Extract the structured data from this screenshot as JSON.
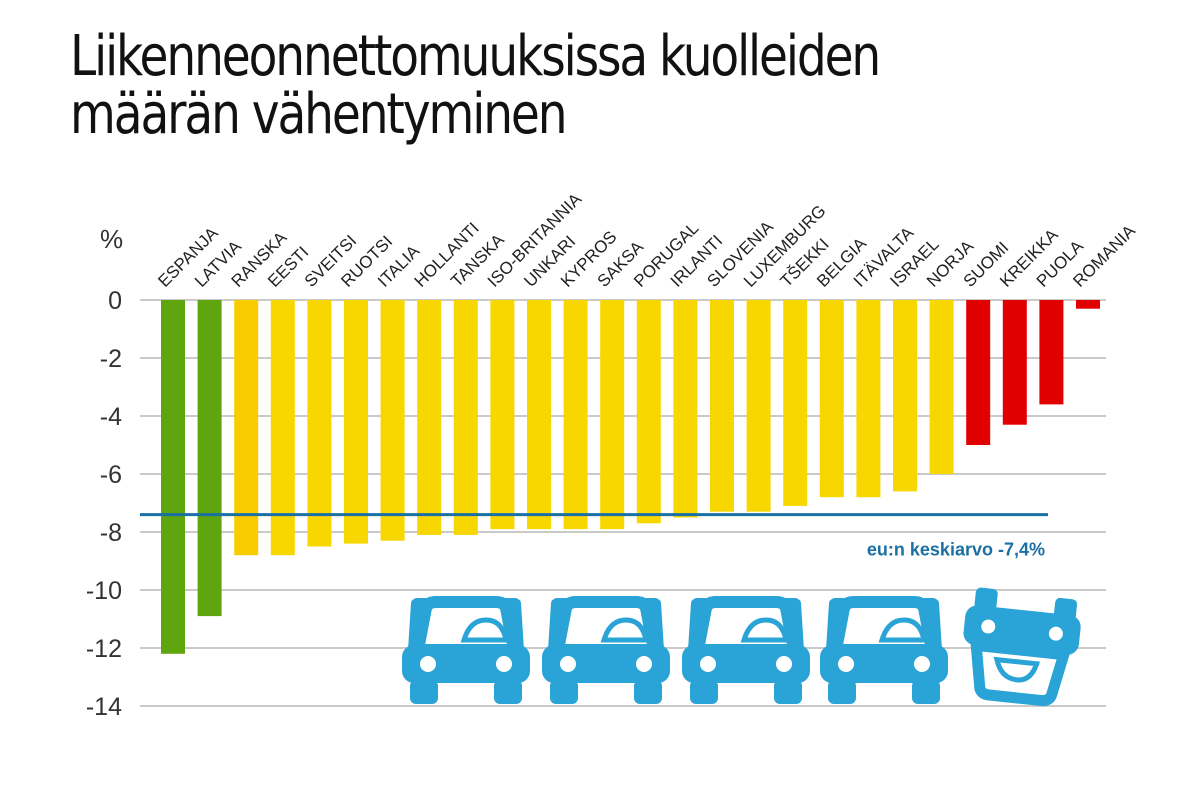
{
  "title": "Liikenneonnettomuuksissa kuolleiden määrän vähentyminen",
  "chart_data": {
    "type": "bar",
    "title": "Liikenneonnettomuuksissa kuolleiden määrän vähentyminen",
    "ylabel": "%",
    "xlabel": "",
    "ylim": [
      -14,
      0
    ],
    "yticks": [
      "0",
      "-2",
      "-4",
      "-6",
      "-8",
      "-10",
      "-12",
      "-14"
    ],
    "grid": true,
    "categories": [
      "ESPANJA",
      "LATVIA",
      "RANSKA",
      "EESTI",
      "SVEITSI",
      "RUOTSI",
      "ITALIA",
      "HOLLANTI",
      "TANSKA",
      "ISO-BRITANNIA",
      "UNKARI",
      "KYPROS",
      "SAKSA",
      "PORUGAL",
      "IRLANTI",
      "SLOVENIA",
      "LUXEMBURG",
      "TŠEKKI",
      "BELGIA",
      "ITÄVALTA",
      "ISRAEL",
      "NORJA",
      "SUOMI",
      "KREIKKA",
      "PUOLA",
      "ROMANIA"
    ],
    "values": [
      -12.2,
      -10.9,
      -8.8,
      -8.8,
      -8.5,
      -8.4,
      -8.3,
      -8.1,
      -8.1,
      -7.9,
      -7.9,
      -7.9,
      -7.9,
      -7.7,
      -7.5,
      -7.3,
      -7.3,
      -7.1,
      -6.8,
      -6.8,
      -6.6,
      -6.0,
      -5.0,
      -4.3,
      -3.6,
      -0.3
    ],
    "colors": [
      "#5fa50d",
      "#5fa50d",
      "#f8cc00",
      "#f8d600",
      "#f8d600",
      "#f8d600",
      "#f8d600",
      "#f8d600",
      "#f8d600",
      "#f8d600",
      "#f8d600",
      "#f8d600",
      "#f8d600",
      "#f8d600",
      "#f8d600",
      "#f8d600",
      "#f8d600",
      "#f8d600",
      "#f8d600",
      "#f8d600",
      "#f8d600",
      "#f8d600",
      "#e00000",
      "#e00000",
      "#e00000",
      "#e00000"
    ],
    "average": {
      "value": -7.4,
      "label": "eu:n  keskiarvo -7,4%",
      "color": "#1a6fa3"
    },
    "icons": [
      "car-icon",
      "car-icon",
      "car-icon",
      "car-icon",
      "crashed-car-icon"
    ],
    "icon_color": "#2aa3d6"
  }
}
